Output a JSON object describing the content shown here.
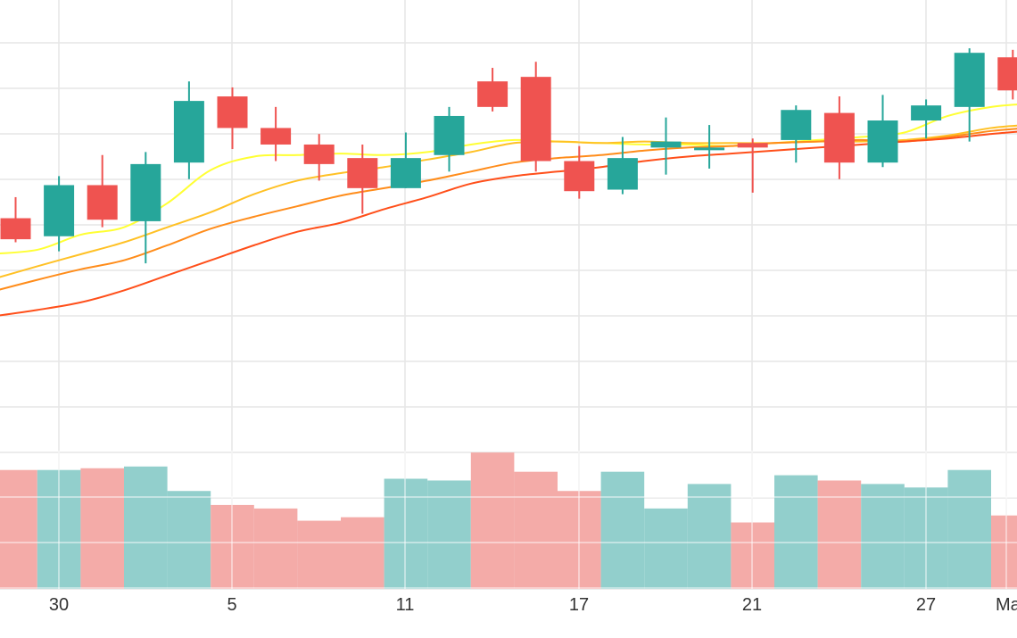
{
  "chart_data": {
    "type": "candlestick",
    "title": "",
    "x_tick_labels": [
      "30",
      "5",
      "11",
      "17",
      "21",
      "27",
      "Ma"
    ],
    "grid": true,
    "legend": "none",
    "colors": {
      "up": "#26a69a",
      "down": "#ef5350",
      "volume_up": "#92cfcc",
      "volume_down": "#f4aba8",
      "grid": "#e6e6e6",
      "ma": [
        "#ffff33",
        "#ffc125",
        "#ff8c1a",
        "#ff4f1a"
      ]
    },
    "y_price_range": [
      0,
      100
    ],
    "y_volume_range": [
      0,
      100
    ],
    "candles": [
      {
        "o": 58.0,
        "h": 65.0,
        "l": 50.0,
        "c": 51.0
      },
      {
        "o": 52.0,
        "h": 72.0,
        "l": 47.0,
        "c": 69.0
      },
      {
        "o": 69.0,
        "h": 79.0,
        "l": 55.0,
        "c": 57.5
      },
      {
        "o": 57.0,
        "h": 80.0,
        "l": 43.0,
        "c": 76.0
      },
      {
        "o": 76.5,
        "h": 103.5,
        "l": 71.0,
        "c": 97.0
      },
      {
        "o": 98.5,
        "h": 101.5,
        "l": 81.0,
        "c": 88.0
      },
      {
        "o": 88.0,
        "h": 95.0,
        "l": 77.0,
        "c": 82.5
      },
      {
        "o": 82.5,
        "h": 86.0,
        "l": 70.5,
        "c": 76.0
      },
      {
        "o": 78.0,
        "h": 82.5,
        "l": 59.5,
        "c": 68.0
      },
      {
        "o": 68.0,
        "h": 86.5,
        "l": 68.0,
        "c": 78.0
      },
      {
        "o": 79.0,
        "h": 95.0,
        "l": 73.5,
        "c": 92.0
      },
      {
        "o": 103.5,
        "h": 108.0,
        "l": 93.5,
        "c": 95.0
      },
      {
        "o": 105.0,
        "h": 110.0,
        "l": 73.5,
        "c": 77.0
      },
      {
        "o": 77.0,
        "h": 82.0,
        "l": 64.5,
        "c": 67.0
      },
      {
        "o": 67.5,
        "h": 85.0,
        "l": 66.0,
        "c": 78.0
      },
      {
        "o": 81.5,
        "h": 91.5,
        "l": 72.5,
        "c": 83.5
      },
      {
        "o": 81.5,
        "h": 89.0,
        "l": 74.5,
        "c": 81.5
      },
      {
        "o": 83.0,
        "h": 84.5,
        "l": 66.5,
        "c": 81.5
      },
      {
        "o": 84.0,
        "h": 95.5,
        "l": 76.5,
        "c": 94.0
      },
      {
        "o": 93.0,
        "h": 98.5,
        "l": 71.0,
        "c": 76.5
      },
      {
        "o": 76.5,
        "h": 99.0,
        "l": 75.0,
        "c": 90.5
      },
      {
        "o": 90.5,
        "h": 97.5,
        "l": 84.5,
        "c": 95.5
      },
      {
        "o": 95.0,
        "h": 114.5,
        "l": 83.5,
        "c": 113.0
      },
      {
        "o": 111.5,
        "h": 114.0,
        "l": 97.5,
        "c": 100.5
      }
    ],
    "volumes": [
      68,
      68,
      69,
      70,
      56,
      48,
      46,
      39,
      41,
      63,
      62,
      78,
      67,
      56,
      67,
      46,
      60,
      38,
      65,
      62,
      60,
      58,
      68,
      42
    ],
    "moving_averages": [
      {
        "values": [
          46.0,
          47.5,
          52.5,
          55.0,
          63.0,
          74.0,
          78.5,
          79.0,
          79.5,
          79.0,
          80.0,
          82.5,
          84.0,
          83.5,
          83.0,
          82.5,
          82.5,
          82.0,
          83.0,
          84.0,
          85.0,
          86.5,
          92.0,
          95.0
        ]
      },
      {
        "values": [
          37.0,
          42.0,
          46.0,
          50.0,
          55.0,
          60.0,
          66.0,
          70.5,
          73.0,
          75.0,
          77.5,
          80.0,
          83.0,
          83.5,
          83.0,
          83.5,
          83.0,
          83.0,
          83.0,
          83.5,
          83.5,
          84.0,
          85.5,
          88.0
        ]
      },
      {
        "values": [
          33.0,
          37.5,
          41.0,
          44.0,
          49.0,
          54.5,
          58.5,
          62.0,
          65.5,
          68.0,
          70.5,
          73.5,
          76.5,
          78.0,
          79.0,
          80.5,
          81.5,
          82.0,
          83.0,
          83.5,
          84.0,
          83.5,
          85.0,
          87.0
        ]
      },
      {
        "values": [
          25.0,
          27.5,
          30.0,
          34.0,
          39.0,
          44.0,
          49.0,
          53.5,
          56.5,
          61.0,
          65.0,
          69.5,
          72.0,
          73.5,
          75.0,
          77.0,
          78.5,
          79.5,
          80.5,
          81.5,
          82.5,
          83.5,
          84.5,
          86.0
        ]
      }
    ]
  }
}
